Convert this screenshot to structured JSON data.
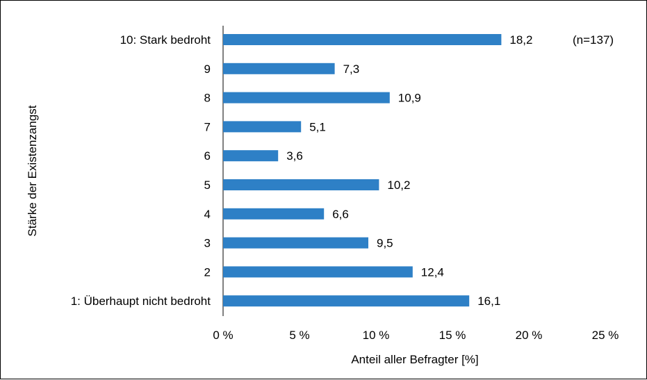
{
  "chart_data": {
    "type": "bar",
    "orientation": "horizontal",
    "categories": [
      "10: Stark bedroht",
      "9",
      "8",
      "7",
      "6",
      "5",
      "4",
      "3",
      "2",
      "1: Überhaupt nicht bedroht"
    ],
    "values": [
      18.2,
      7.3,
      10.9,
      5.1,
      3.6,
      10.2,
      6.6,
      9.5,
      12.4,
      16.1
    ],
    "value_labels": [
      "18,2",
      "7,3",
      "10,9",
      "5,1",
      "3,6",
      "10,2",
      "6,6",
      "9,5",
      "12,4",
      "16,1"
    ],
    "xlabel": "Anteil aller Befragter [%]",
    "ylabel": "Stärke der Existenzangst",
    "xlim": [
      0,
      25
    ],
    "x_ticks": [
      0,
      5,
      10,
      15,
      20,
      25
    ],
    "x_tick_labels": [
      "0 %",
      "5 %",
      "10 %",
      "15 %",
      "20 %",
      "25 %"
    ],
    "annotation": "(n=137)",
    "grid": false,
    "bar_color": "#2e80c6"
  }
}
